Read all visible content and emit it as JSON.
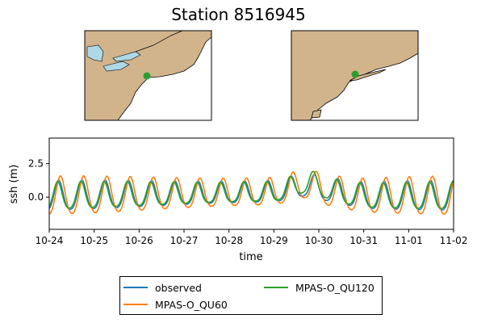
{
  "title": "Station 8516945",
  "maps": [
    {
      "name": "regional-map",
      "land_color": "#d2b48c",
      "water_color": "#add8e6",
      "marker_color": "#2ca02c"
    },
    {
      "name": "local-map",
      "land_color": "#d2b48c",
      "water_color": "#ffffff",
      "marker_color": "#2ca02c"
    }
  ],
  "chart_data": {
    "type": "line",
    "xlabel": "time",
    "ylabel": "ssh (m)",
    "x_ticks": [
      "10-24",
      "10-25",
      "10-26",
      "10-27",
      "10-28",
      "10-29",
      "10-30",
      "10-31",
      "11-01",
      "11-02"
    ],
    "y_ticks": [
      "0.0",
      "2.5"
    ],
    "xlim": [
      "10-24",
      "11-02"
    ],
    "ylim": [
      -2.4,
      4.4
    ],
    "legend_position": "bottom-center",
    "series": [
      {
        "name": "observed",
        "color": "#1f77b4",
        "amplitude": 1.05,
        "phase_shift_h": 0.0,
        "period_h": 12.42,
        "surge": [
          [
            0,
            0
          ],
          [
            5,
            0.3
          ],
          [
            5.7,
            0.8
          ],
          [
            6.3,
            0.4
          ],
          [
            7,
            0
          ],
          [
            9,
            0
          ]
        ]
      },
      {
        "name": "MPAS-O_QU60",
        "color": "#ff7f0e",
        "amplitude": 1.35,
        "phase_shift_h": 1.0,
        "period_h": 12.42,
        "surge": [
          [
            0,
            0
          ],
          [
            5,
            0.3
          ],
          [
            5.7,
            0.9
          ],
          [
            6.3,
            0.3
          ],
          [
            7,
            0
          ],
          [
            9,
            0
          ]
        ]
      },
      {
        "name": "MPAS-O_QU120",
        "color": "#2ca02c",
        "amplitude": 0.95,
        "phase_shift_h": -0.5,
        "period_h": 12.42,
        "surge": [
          [
            0,
            0
          ],
          [
            5,
            0.3
          ],
          [
            5.8,
            1.1
          ],
          [
            6.3,
            0.4
          ],
          [
            7,
            0
          ],
          [
            9,
            0
          ]
        ]
      }
    ]
  }
}
